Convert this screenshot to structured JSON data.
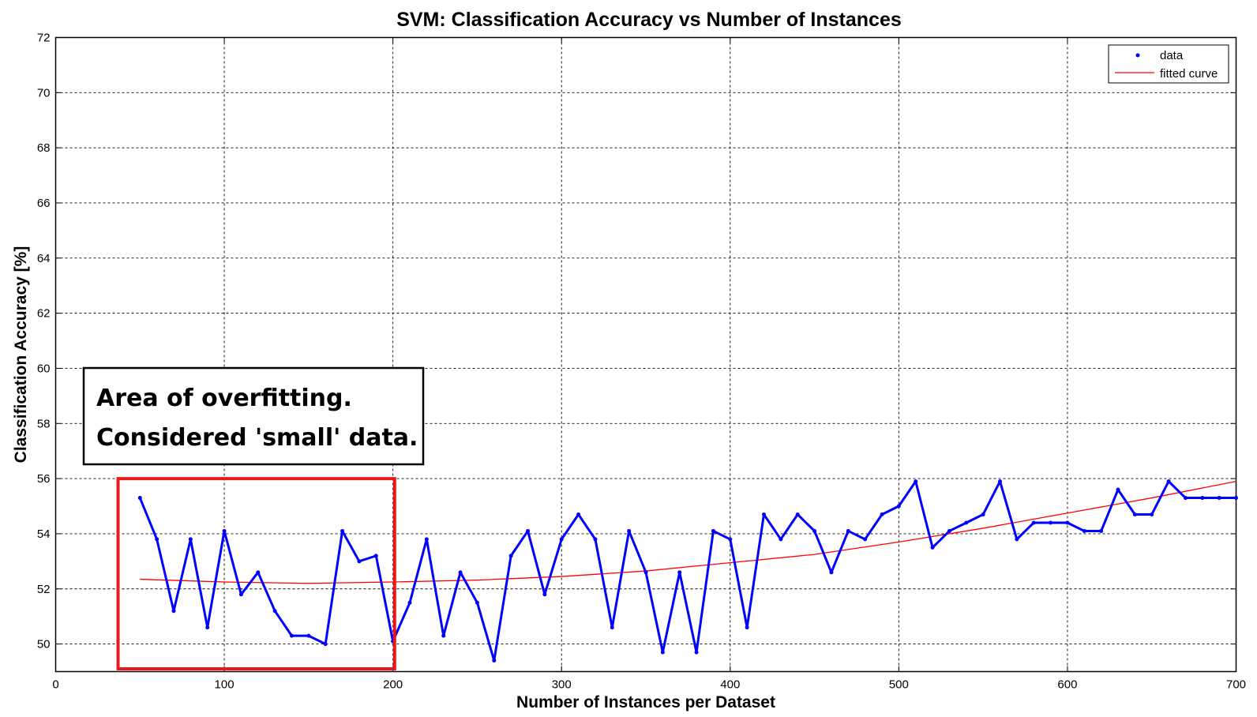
{
  "chart_data": {
    "type": "line",
    "title": "SVM: Classification Accuracy vs Number of Instances",
    "xlabel": "Number of Instances per Dataset",
    "ylabel": "Classification Accuracy [%]",
    "xlim": [
      0,
      700
    ],
    "ylim": [
      49,
      72
    ],
    "xticks": [
      0,
      100,
      200,
      300,
      400,
      500,
      600,
      700
    ],
    "yticks": [
      50,
      52,
      54,
      56,
      58,
      60,
      62,
      64,
      66,
      68,
      70,
      72
    ],
    "grid": true,
    "legend_position": "top-right",
    "series": [
      {
        "name": "data",
        "color": "#0000ff",
        "x": [
          50,
          60,
          70,
          80,
          90,
          100,
          110,
          120,
          130,
          140,
          150,
          160,
          170,
          180,
          190,
          200,
          210,
          220,
          230,
          240,
          250,
          260,
          270,
          280,
          290,
          300,
          310,
          320,
          330,
          340,
          350,
          360,
          370,
          380,
          390,
          400,
          410,
          420,
          430,
          440,
          450,
          460,
          470,
          480,
          490,
          500,
          510,
          520,
          530,
          540,
          550,
          560,
          570,
          580,
          590,
          600,
          610,
          620,
          630,
          640,
          650,
          660,
          670,
          680,
          690,
          700
        ],
        "y": [
          55.3,
          53.8,
          51.2,
          53.8,
          50.6,
          54.1,
          51.8,
          52.6,
          51.2,
          50.3,
          50.3,
          50.0,
          54.1,
          53.0,
          53.2,
          50.1,
          51.5,
          53.8,
          50.3,
          52.6,
          51.5,
          49.4,
          53.2,
          54.1,
          51.8,
          53.8,
          54.7,
          53.8,
          50.6,
          54.1,
          52.6,
          49.7,
          52.6,
          49.7,
          54.1,
          53.8,
          50.6,
          54.7,
          53.8,
          54.7,
          54.1,
          52.6,
          54.1,
          53.8,
          54.7,
          55.0,
          55.9,
          53.5,
          54.1,
          54.4,
          54.7,
          55.9,
          53.8,
          54.4,
          54.4,
          54.4,
          54.1,
          54.1,
          55.6,
          54.7,
          54.7,
          55.9,
          55.3,
          55.3,
          55.3,
          55.3
        ]
      },
      {
        "name": "fitted curve",
        "color": "#ff0000",
        "x": [
          50,
          100,
          150,
          200,
          250,
          300,
          350,
          400,
          450,
          500,
          550,
          600,
          650,
          700
        ],
        "y": [
          52.35,
          52.25,
          52.2,
          52.25,
          52.32,
          52.45,
          52.65,
          52.95,
          53.25,
          53.7,
          54.2,
          54.75,
          55.3,
          55.9
        ]
      }
    ],
    "annotation": {
      "lines": [
        "Area of overfitting.",
        "Considered 'small' data."
      ],
      "highlight_x": [
        37,
        201
      ],
      "highlight_y": [
        49.1,
        56.0
      ],
      "highlight_color": "#e8191d"
    }
  }
}
